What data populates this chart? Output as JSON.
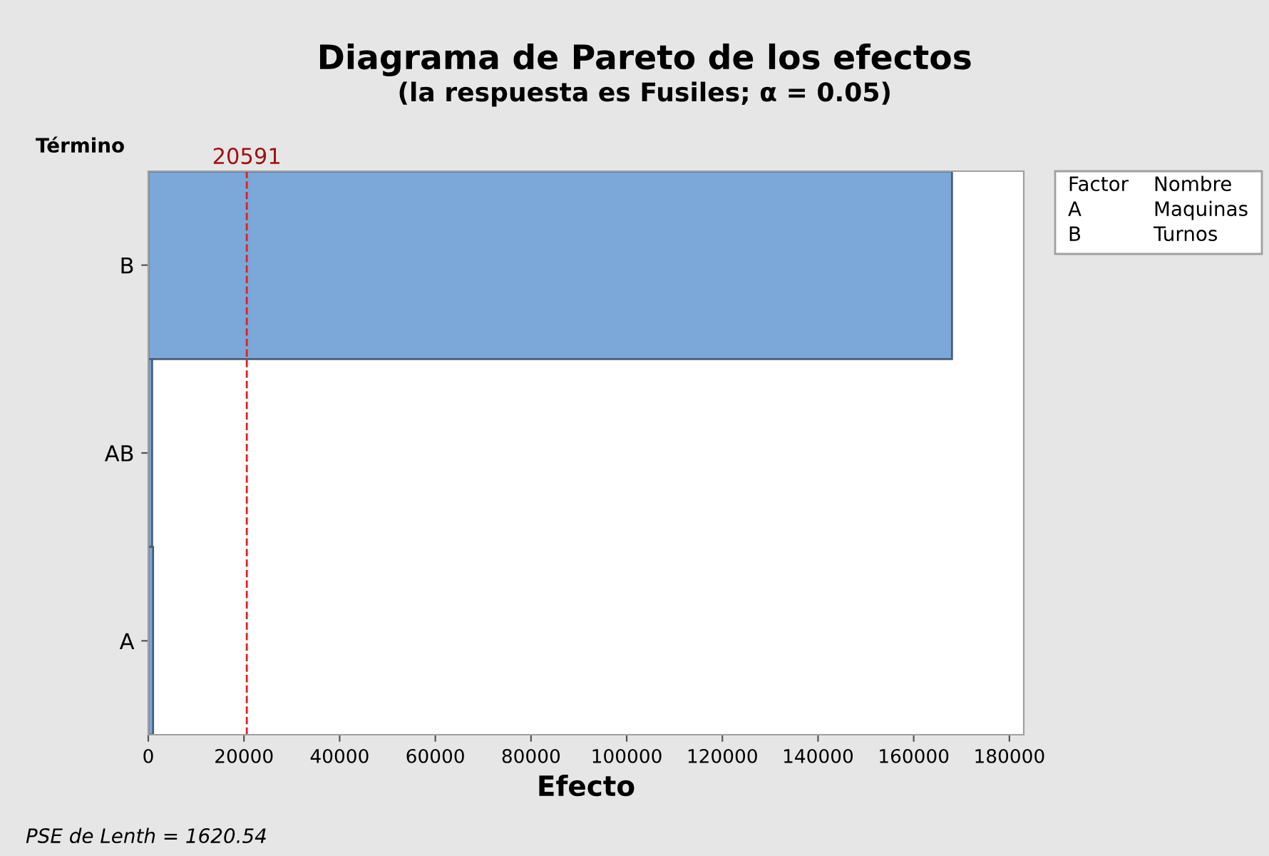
{
  "chart_data": {
    "type": "bar",
    "orientation": "horizontal",
    "title": "Diagrama de Pareto de los efectos",
    "subtitle": "(la respuesta es Fusiles; α = 0.05)",
    "xlabel": "Efecto",
    "ylabel": "Término",
    "categories": [
      "B",
      "AB",
      "A"
    ],
    "series": [
      {
        "color": "#7ba7d9",
        "values": [
          168000,
          800,
          1000
        ]
      }
    ],
    "xlim": [
      0,
      183000
    ],
    "xticks": [
      0,
      20000,
      40000,
      60000,
      80000,
      100000,
      120000,
      140000,
      160000,
      180000
    ],
    "ref_lines": [
      {
        "axis": "x",
        "value": 20591,
        "label": "20591",
        "color": "#e02020",
        "line_style": "dashed"
      }
    ],
    "annotations": [
      "Factor",
      "Nombre",
      "A",
      "Maquinas",
      "B",
      "Turnos",
      "PSE de Lenth = 1620.54"
    ],
    "grid": false
  }
}
